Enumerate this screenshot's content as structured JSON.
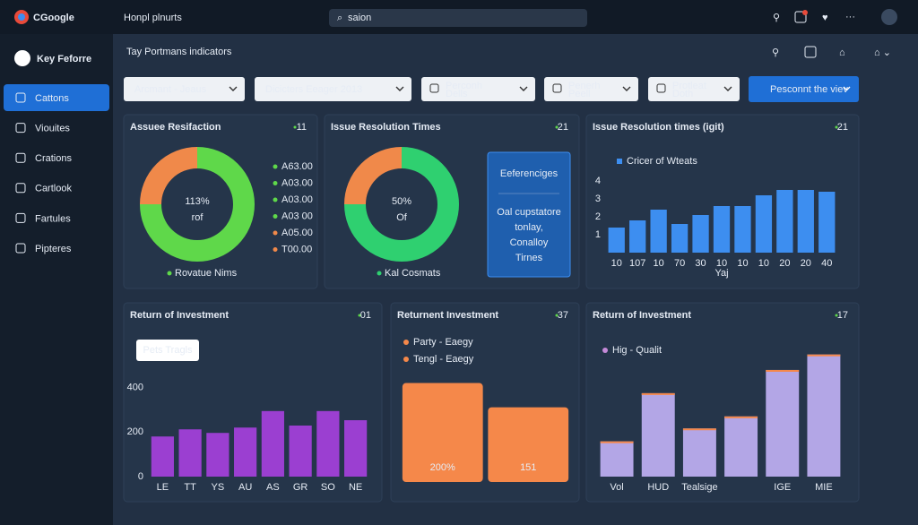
{
  "browser": {
    "brand": "CGoogle",
    "tab": "Honpl plnurts",
    "search": "saion"
  },
  "sidebar": {
    "title": "Key Feforre",
    "items": [
      "Cattons",
      "Viouites",
      "Crations",
      "Cartlook",
      "Fartules",
      "Pipteres"
    ]
  },
  "header": {
    "title": "Tay Portmans indicators"
  },
  "filters": [
    {
      "label": "Arcmant - Jeaus"
    },
    {
      "label": "Dicicters Eeager 2013"
    },
    {
      "label": "Perconh",
      "sub": "Dells"
    },
    {
      "label": "Penerh",
      "sub": "Peell"
    },
    {
      "label": "Protleat",
      "sub": "Doth"
    }
  ],
  "action": "Pesconnt the viev",
  "panels": [
    {
      "title": "Assuee Resifaction",
      "badge": "11",
      "type": "donut",
      "center": "113%",
      "center_sub": "rof",
      "values": [
        75,
        25
      ],
      "colors": [
        "#5fd84a",
        "#f0894a"
      ],
      "legend": [
        {
          "label": "A63.00",
          "color": "#5fd84a"
        },
        {
          "label": "A03.00",
          "color": "#5fd84a"
        },
        {
          "label": "A03.00",
          "color": "#5fd84a"
        },
        {
          "label": "A03 00",
          "color": "#5fd84a"
        },
        {
          "label": "A05.00",
          "color": "#f0894a"
        },
        {
          "label": "T00.00",
          "color": "#f0894a"
        }
      ],
      "footer": "Rovatue Nims"
    },
    {
      "title": "Issue Resolution Times",
      "badge": "21",
      "type": "donut",
      "center": "50%",
      "center_sub": "Of",
      "values": [
        75,
        25
      ],
      "colors": [
        "#2fd070",
        "#f0894a"
      ],
      "note": {
        "heading": "Eeferenciges",
        "lines": [
          "Oal cupstatore",
          "tonlay,",
          "Conalloy",
          "Tirnes"
        ]
      },
      "footer": "Kal Cosmats"
    },
    {
      "title": "Issue Resolution times (igit)",
      "badge": "21",
      "type": "bar",
      "color": "#3d8ef0",
      "legend": "Cricer of Wteats",
      "categories": [
        "10",
        "107",
        "10",
        "70",
        "30",
        "10",
        "10",
        "10",
        "20",
        "20",
        "40"
      ],
      "values": [
        1.4,
        1.8,
        2.4,
        1.6,
        2.1,
        2.6,
        2.6,
        3.2,
        3.5,
        3.5,
        3.4
      ],
      "ylim": [
        0,
        4.6
      ],
      "yticks": [
        1,
        2,
        3,
        4
      ],
      "xlabel": "Yaj"
    },
    {
      "title": "Return of Investment",
      "badge": "01",
      "type": "bar",
      "color": "#9b3fd1",
      "tooltip": "Pets Tragls",
      "categories": [
        "LE",
        "TT",
        "YS",
        "AU",
        "AS",
        "GR",
        "SO",
        "NE"
      ],
      "values": [
        180,
        212,
        196,
        220,
        294,
        229,
        294,
        253
      ],
      "ylim": [
        0,
        450
      ],
      "yticks": [
        0,
        200,
        400
      ]
    },
    {
      "title": "Returnent Investment",
      "badge": "37",
      "type": "bar",
      "color": "#f5884a",
      "legend": [
        {
          "label": "Party - Eaegy",
          "color": "#f5884a"
        },
        {
          "label": "Tengl - Eaegy",
          "color": "#f5884a"
        }
      ],
      "values": [
        200,
        151
      ],
      "value_labels": [
        "200%",
        "151"
      ],
      "ylim": [
        0,
        210
      ]
    },
    {
      "title": "Return of Investment",
      "badge": "17",
      "type": "bar",
      "color": "#b3a6e6",
      "cap_color": "#f5884a",
      "legend": "Hig - Qualit",
      "categories": [
        "Vol",
        "HUD",
        "Tealsige",
        null,
        "IGE",
        "MIE"
      ],
      "values": [
        41,
        97,
        56,
        70,
        124,
        142
      ],
      "ylim": [
        0,
        150
      ]
    }
  ]
}
